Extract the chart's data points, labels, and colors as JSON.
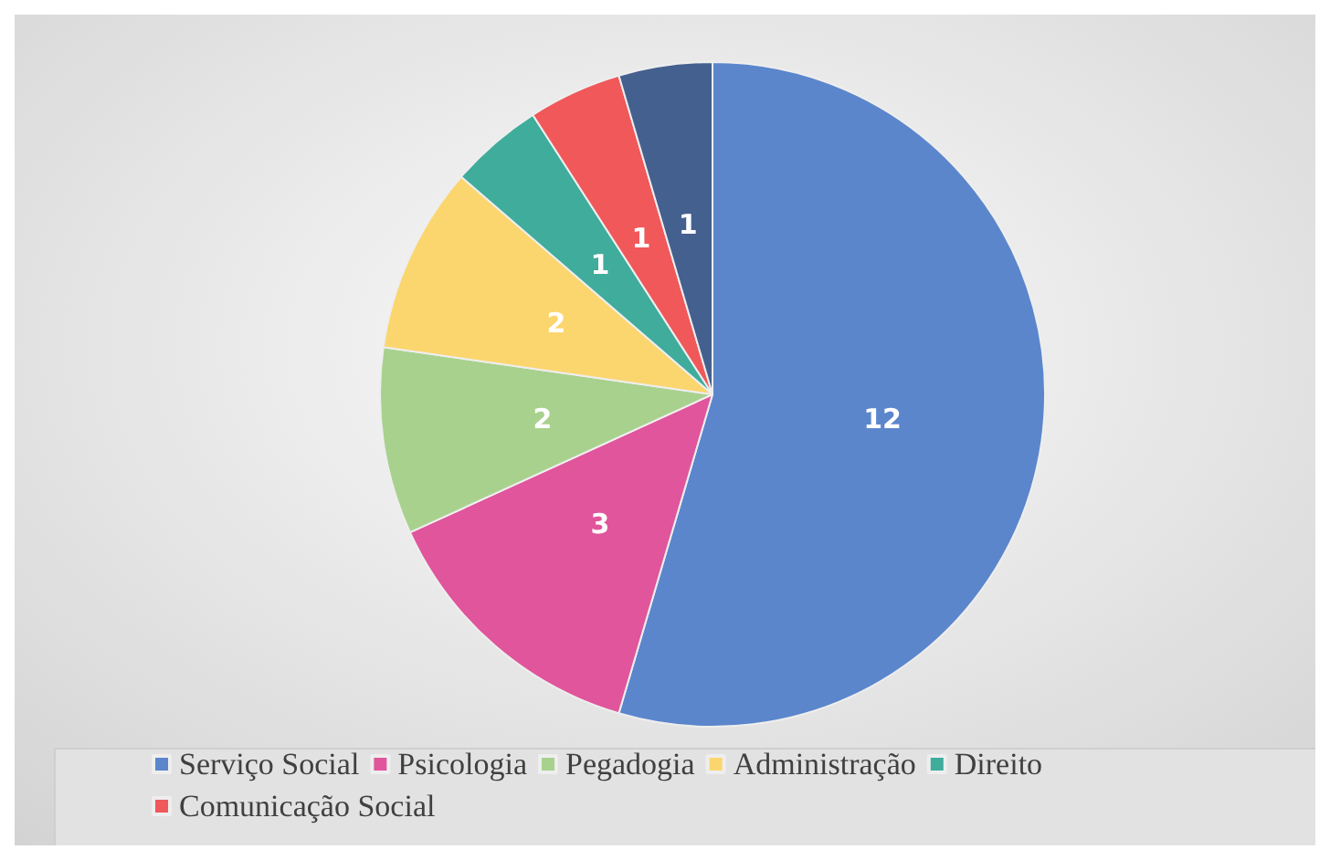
{
  "chart_data": {
    "type": "pie",
    "categories": [
      "Serviço Social",
      "Psicologia",
      "Pegadogia",
      "Administração",
      "Direito",
      "Comunicação Social",
      null
    ],
    "values": [
      12,
      3,
      2,
      2,
      1,
      1,
      1
    ],
    "colors": [
      "#5b86cc",
      "#e0559b",
      "#a9d18e",
      "#fbd66e",
      "#3fac9c",
      "#f0585a",
      "#44608f"
    ],
    "data_labels": true,
    "legend": "bottom"
  }
}
